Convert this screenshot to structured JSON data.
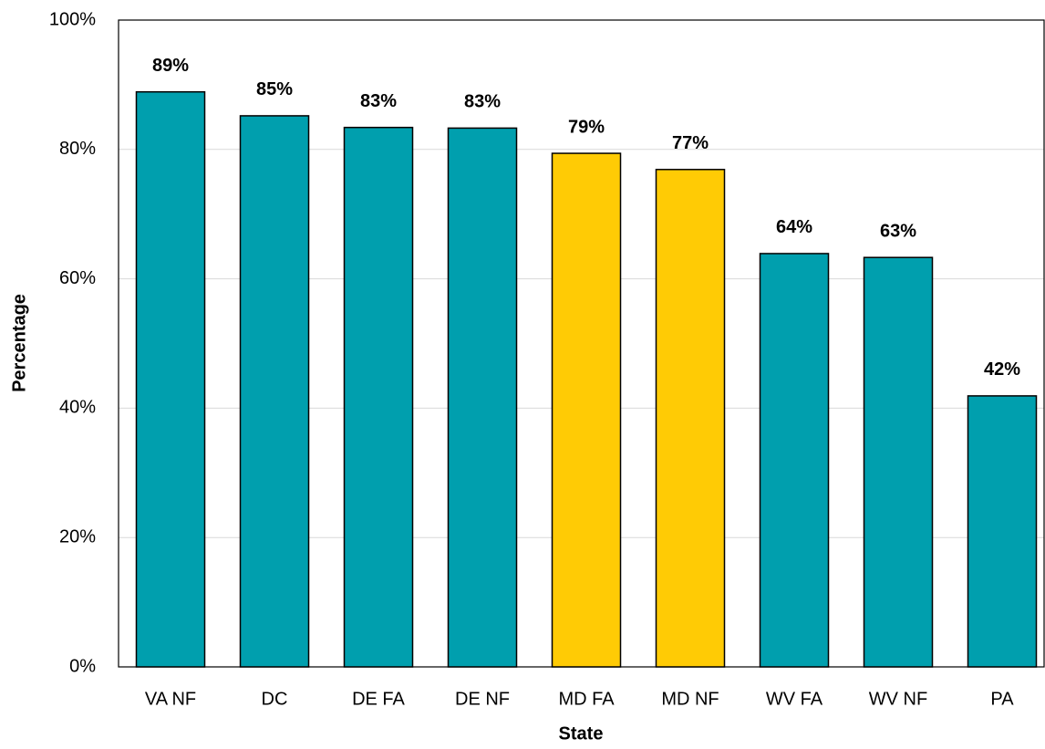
{
  "chart_data": {
    "type": "bar",
    "x_label": "State",
    "y_label": "Percentage",
    "categories": [
      "VA NF",
      "DC",
      "DE FA",
      "DE NF",
      "MD FA",
      "MD NF",
      "WV FA",
      "WV NF",
      "PA"
    ],
    "values": [
      88.9,
      85.2,
      83.4,
      83.3,
      79.4,
      76.9,
      63.9,
      63.3,
      41.9
    ],
    "value_labels": [
      "89%",
      "85%",
      "83%",
      "83%",
      "79%",
      "77%",
      "64%",
      "63%",
      "42%"
    ],
    "colors": [
      "#009fae",
      "#009fae",
      "#009fae",
      "#009fae",
      "#ffcb05",
      "#ffcb05",
      "#009fae",
      "#009fae",
      "#009fae"
    ],
    "ylim": [
      0,
      100
    ],
    "yticks": [
      {
        "value": 0,
        "label": "0%"
      },
      {
        "value": 20,
        "label": "20%"
      },
      {
        "value": 40,
        "label": "40%"
      },
      {
        "value": 60,
        "label": "60%"
      },
      {
        "value": 80,
        "label": "80%"
      },
      {
        "value": 100,
        "label": "100%"
      }
    ],
    "grid": true
  }
}
